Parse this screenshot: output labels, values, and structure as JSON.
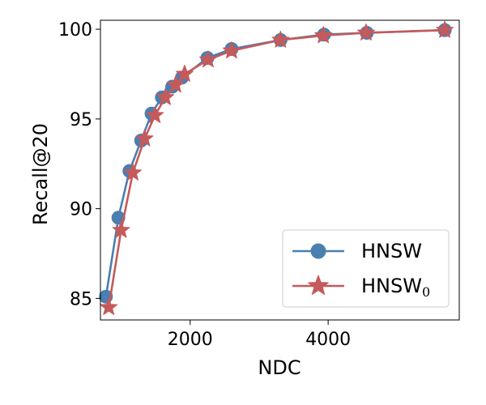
{
  "chart_data": {
    "type": "line",
    "xlabel": "NDC",
    "ylabel": "Recall@20",
    "xlim": [
      700,
      5900
    ],
    "ylim": [
      83.8,
      100.5
    ],
    "xticks": [
      2000,
      4000
    ],
    "xtick_labels": [
      "2000",
      "4000"
    ],
    "yticks": [
      85,
      90,
      95,
      100
    ],
    "ytick_labels": [
      "85",
      "90",
      "95",
      "100"
    ],
    "grid": false,
    "legend_position": "lower-right",
    "series": [
      {
        "name": "HNSW",
        "color": "#4a7fb0",
        "marker": "circle",
        "x": [
          780,
          960,
          1120,
          1290,
          1440,
          1590,
          1740,
          1880,
          2250,
          2600,
          3310,
          3940,
          4560,
          5690
        ],
        "y": [
          85.1,
          89.5,
          92.1,
          93.8,
          95.3,
          96.2,
          96.8,
          97.3,
          98.4,
          98.9,
          99.4,
          99.7,
          99.8,
          99.95
        ]
      },
      {
        "name": "HNSW",
        "name_subscript": "0",
        "color": "#c55a5a",
        "marker": "star",
        "x": [
          820,
          1000,
          1170,
          1340,
          1490,
          1640,
          1790,
          1920,
          2260,
          2600,
          3310,
          3930,
          4550,
          5690
        ],
        "y": [
          84.5,
          88.8,
          92.0,
          93.9,
          95.2,
          96.2,
          96.9,
          97.5,
          98.3,
          98.8,
          99.4,
          99.65,
          99.8,
          99.95
        ]
      }
    ]
  }
}
